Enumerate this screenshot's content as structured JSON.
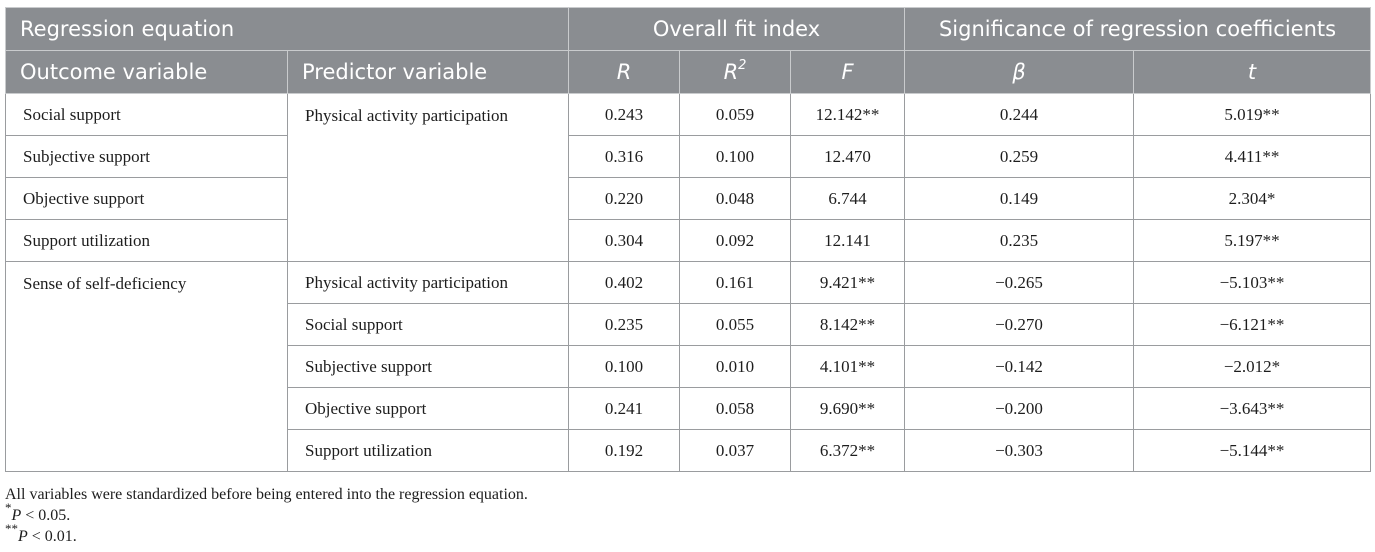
{
  "header": {
    "regression_equation": "Regression equation",
    "overall_fit_index": "Overall fit index",
    "significance": "Significance of regression coefficients",
    "outcome_variable": "Outcome variable",
    "predictor_variable": "Predictor variable",
    "col_r": "R",
    "col_r2_base": "R",
    "col_r2_sup": "2",
    "col_f": "F",
    "col_beta": "β",
    "col_t": "t"
  },
  "groups": [
    {
      "outcome": "Social support",
      "predictor_label": "Physical activity participation",
      "rows": [
        {
          "outcome": "Social support",
          "predictor": "",
          "R": "0.243",
          "R2": "0.059",
          "F": "12.142**",
          "beta": "0.244",
          "t": "5.019**"
        },
        {
          "outcome": "Subjective support",
          "predictor": "",
          "R": "0.316",
          "R2": "0.100",
          "F": "12.470",
          "beta": "0.259",
          "t": "4.411**"
        },
        {
          "outcome": "Objective support",
          "predictor": "",
          "R": "0.220",
          "R2": "0.048",
          "F": "6.744",
          "beta": "0.149",
          "t": "2.304*"
        },
        {
          "outcome": "Support utilization",
          "predictor": "",
          "R": "0.304",
          "R2": "0.092",
          "F": "12.141",
          "beta": "0.235",
          "t": "5.197**"
        }
      ]
    },
    {
      "outcome": "Sense of self-deficiency",
      "rows": [
        {
          "predictor": "Physical activity participation",
          "R": "0.402",
          "R2": "0.161",
          "F": "9.421**",
          "beta": "−0.265",
          "t": "−5.103**"
        },
        {
          "predictor": "Social support",
          "R": "0.235",
          "R2": "0.055",
          "F": "8.142**",
          "beta": "−0.270",
          "t": "−6.121**"
        },
        {
          "predictor": "Subjective support",
          "R": "0.100",
          "R2": "0.010",
          "F": "4.101**",
          "beta": "−0.142",
          "t": "−2.012*"
        },
        {
          "predictor": "Objective support",
          "R": "0.241",
          "R2": "0.058",
          "F": "9.690**",
          "beta": "−0.200",
          "t": "−3.643**"
        },
        {
          "predictor": "Support utilization",
          "R": "0.192",
          "R2": "0.037",
          "F": "6.372**",
          "beta": "−0.303",
          "t": "−5.144**"
        }
      ]
    }
  ],
  "notes": {
    "standardized": "All variables were standardized before being entered into the regression equation.",
    "p05_mark": "*",
    "p05_var": "P",
    "p05_rest": " < 0.05.",
    "p01_mark": "**",
    "p01_var": "P",
    "p01_rest": " < 0.01."
  },
  "colors": {
    "header_bg": "#8a8d91",
    "header_text": "#ffffff",
    "border": "#9a9c9f"
  }
}
